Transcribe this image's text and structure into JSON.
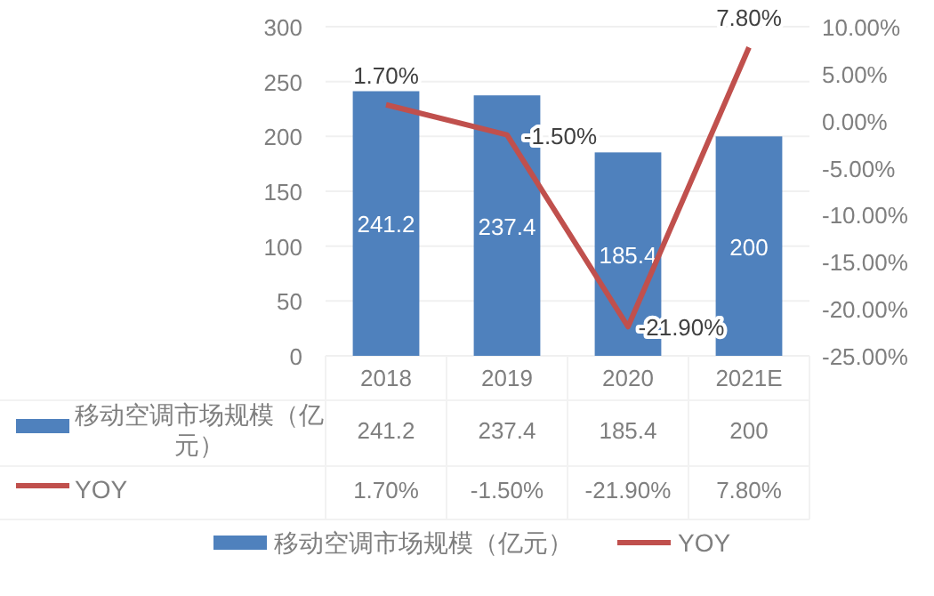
{
  "chart_data": {
    "type": "bar",
    "categories": [
      "2018",
      "2019",
      "2020",
      "2021E"
    ],
    "series": [
      {
        "name": "移动空调市场规模（亿元）",
        "color": "#4f81bd",
        "values": [
          241.2,
          237.4,
          185.4,
          200
        ],
        "value_labels": [
          "241.2",
          "237.4",
          "185.4",
          "200"
        ]
      },
      {
        "name": "YOY",
        "type": "line",
        "axis": "y2",
        "color": "#c0504d",
        "values": [
          1.7,
          -1.5,
          -21.9,
          7.8
        ],
        "value_labels": [
          "1.70%",
          "-1.50%",
          "-21.90%",
          "7.80%"
        ]
      }
    ],
    "ylim": [
      0,
      300
    ],
    "yticks": [
      0,
      50,
      100,
      150,
      200,
      250,
      300
    ],
    "y2lim": [
      -25,
      10
    ],
    "y2ticks": [
      {
        "value": -25,
        "label": "-25.00%"
      },
      {
        "value": -20,
        "label": "-20.00%"
      },
      {
        "value": -15,
        "label": "-15.00%"
      },
      {
        "value": -10,
        "label": "-10.00%"
      },
      {
        "value": -5,
        "label": "-5.00%"
      },
      {
        "value": 0,
        "label": "0.00%"
      },
      {
        "value": 5,
        "label": "5.00%"
      },
      {
        "value": 10,
        "label": "10.00%"
      }
    ],
    "grid": "y",
    "legend": "bottom"
  }
}
